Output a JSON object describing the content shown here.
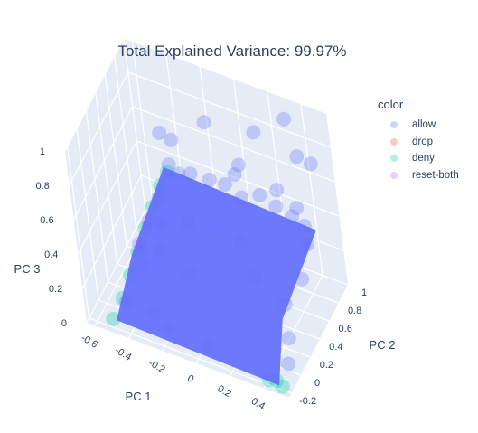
{
  "chart_data": {
    "type": "scatter",
    "title": "Total Explained Variance: 99.97%",
    "axes": {
      "x": {
        "label": "PC 1",
        "ticks": [
          "-0.6",
          "-0.4",
          "-0.2",
          "0",
          "0.2",
          "0.4"
        ],
        "range": [
          -0.65,
          0.55
        ]
      },
      "y": {
        "label": "PC 2",
        "ticks": [
          "-0.2",
          "0",
          "0.2",
          "0.4",
          "0.6",
          "0.8",
          "1"
        ],
        "range": [
          -0.25,
          1.0
        ]
      },
      "z": {
        "label": "PC 3",
        "ticks": [
          "0",
          "0.2",
          "0.4",
          "0.6",
          "0.8",
          "1"
        ],
        "range": [
          0,
          1.0
        ]
      }
    },
    "legend": {
      "title": "color",
      "placement": "top-right",
      "items": [
        {
          "name": "allow",
          "color": "#636efa"
        },
        {
          "name": "drop",
          "color": "#EF553B"
        },
        {
          "name": "deny",
          "color": "#00cc96"
        },
        {
          "name": "reset-both",
          "color": "#ab63fa"
        }
      ]
    },
    "series": [
      {
        "name": "allow",
        "color": "#636efa",
        "points": [
          [
            -0.42,
            0.86,
            0.42
          ],
          [
            -0.38,
            0.9,
            0.36
          ],
          [
            -0.3,
            0.88,
            0.4
          ],
          [
            -0.2,
            0.92,
            0.38
          ],
          [
            -0.1,
            0.9,
            0.4
          ],
          [
            0.0,
            0.88,
            0.37
          ],
          [
            0.1,
            0.92,
            0.4
          ],
          [
            0.2,
            0.9,
            0.38
          ],
          [
            0.3,
            0.88,
            0.37
          ],
          [
            0.38,
            0.85,
            0.36
          ],
          [
            -0.45,
            0.7,
            0.3
          ],
          [
            -0.4,
            0.55,
            0.25
          ],
          [
            -0.35,
            0.35,
            0.22
          ],
          [
            -0.42,
            0.2,
            0.18
          ],
          [
            0.42,
            0.75,
            0.32
          ],
          [
            0.45,
            0.5,
            0.26
          ],
          [
            0.4,
            0.3,
            0.2
          ],
          [
            0.45,
            0.15,
            0.1
          ],
          [
            -0.1,
            0.1,
            0.3
          ],
          [
            0.1,
            0.5,
            0.35
          ],
          [
            -0.25,
            0.6,
            0.28
          ],
          [
            0.25,
            0.25,
            0.33
          ],
          [
            -0.48,
            0.0,
            0.05
          ],
          [
            0.48,
            0.0,
            0.04
          ],
          [
            0.3,
            0.95,
            0.9
          ],
          [
            0.1,
            0.95,
            0.75
          ],
          [
            -0.2,
            0.95,
            0.7
          ],
          [
            0.45,
            0.9,
            0.72
          ],
          [
            0.35,
            0.95,
            0.7
          ],
          [
            -0.45,
            0.85,
            0.6
          ],
          [
            -0.4,
            0.9,
            0.55
          ],
          [
            0.4,
            0.7,
            0.55
          ],
          [
            0.0,
            0.9,
            0.55
          ],
          [
            -0.05,
            0.95,
            0.45
          ],
          [
            0.2,
            0.95,
            0.45
          ]
        ]
      },
      {
        "name": "deny",
        "color": "#00cc96",
        "points": [
          [
            -0.5,
            -0.2,
            0.05
          ],
          [
            -0.48,
            -0.05,
            0.1
          ],
          [
            -0.47,
            0.1,
            0.16
          ],
          [
            -0.46,
            0.25,
            0.22
          ],
          [
            -0.45,
            0.4,
            0.28
          ],
          [
            -0.44,
            0.55,
            0.33
          ],
          [
            -0.43,
            0.7,
            0.38
          ],
          [
            -0.42,
            0.82,
            0.4
          ],
          [
            0.42,
            -0.2,
            0.03
          ],
          [
            0.46,
            -0.18,
            0.03
          ],
          [
            0.5,
            -0.2,
            0.02
          ]
        ]
      },
      {
        "name": "reset-both",
        "color": "#ab63fa",
        "points": [
          [
            -0.46,
            0.3,
            0.24
          ],
          [
            -0.44,
            0.45,
            0.3
          ],
          [
            -0.3,
            -0.05,
            0.08
          ],
          [
            0.05,
            -0.15,
            0.06
          ],
          [
            -0.2,
            -0.1,
            0.05
          ]
        ]
      },
      {
        "name": "drop",
        "color": "#EF553B",
        "points": []
      }
    ]
  }
}
